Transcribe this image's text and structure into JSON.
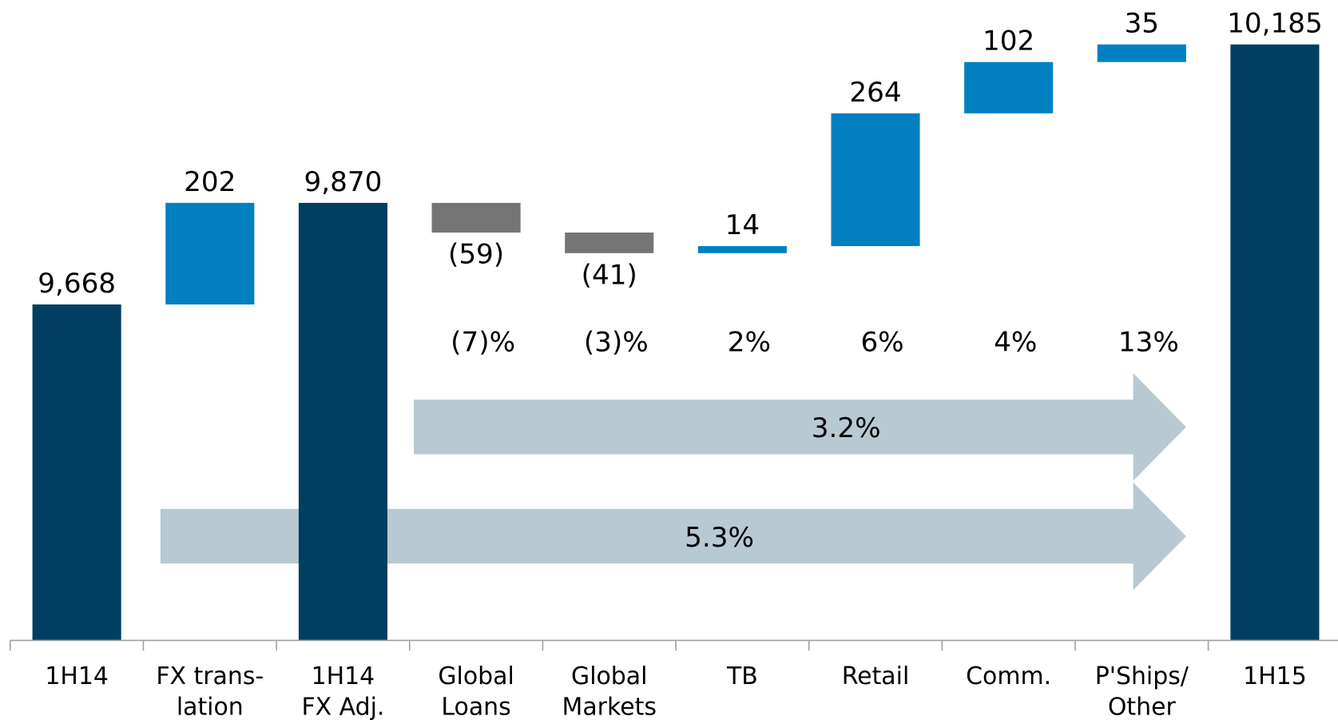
{
  "chart_data": {
    "type": "waterfall",
    "categories": [
      [
        "1H14"
      ],
      [
        "FX trans-",
        "lation"
      ],
      [
        "1H14",
        "FX Adj."
      ],
      [
        "Global",
        "Loans"
      ],
      [
        "Global",
        "Markets"
      ],
      [
        "TB"
      ],
      [
        "Retail"
      ],
      [
        "Comm."
      ],
      [
        "P'Ships/",
        "Other"
      ],
      [
        "1H15"
      ]
    ],
    "kinds": [
      "total",
      "delta",
      "total",
      "delta",
      "delta",
      "delta",
      "delta",
      "delta",
      "delta",
      "total"
    ],
    "values": [
      9668,
      202,
      9870,
      -59,
      -41,
      14,
      264,
      102,
      35,
      10185
    ],
    "value_labels": [
      "9,668",
      "202",
      "9,870",
      "(59)",
      "(41)",
      "14",
      "264",
      "102",
      "35",
      "10,185"
    ],
    "growth_labels": [
      null,
      null,
      null,
      "(7)%",
      "(3)%",
      "2%",
      "6%",
      "4%",
      "13%",
      null
    ],
    "annotations": [
      "3.2%",
      "5.3%"
    ],
    "colors": {
      "total": "#003f62",
      "increase": "#0080c0",
      "decrease": "#757575",
      "arrow": "#b8c9d1"
    },
    "ylim": [
      9000,
      10200
    ]
  }
}
